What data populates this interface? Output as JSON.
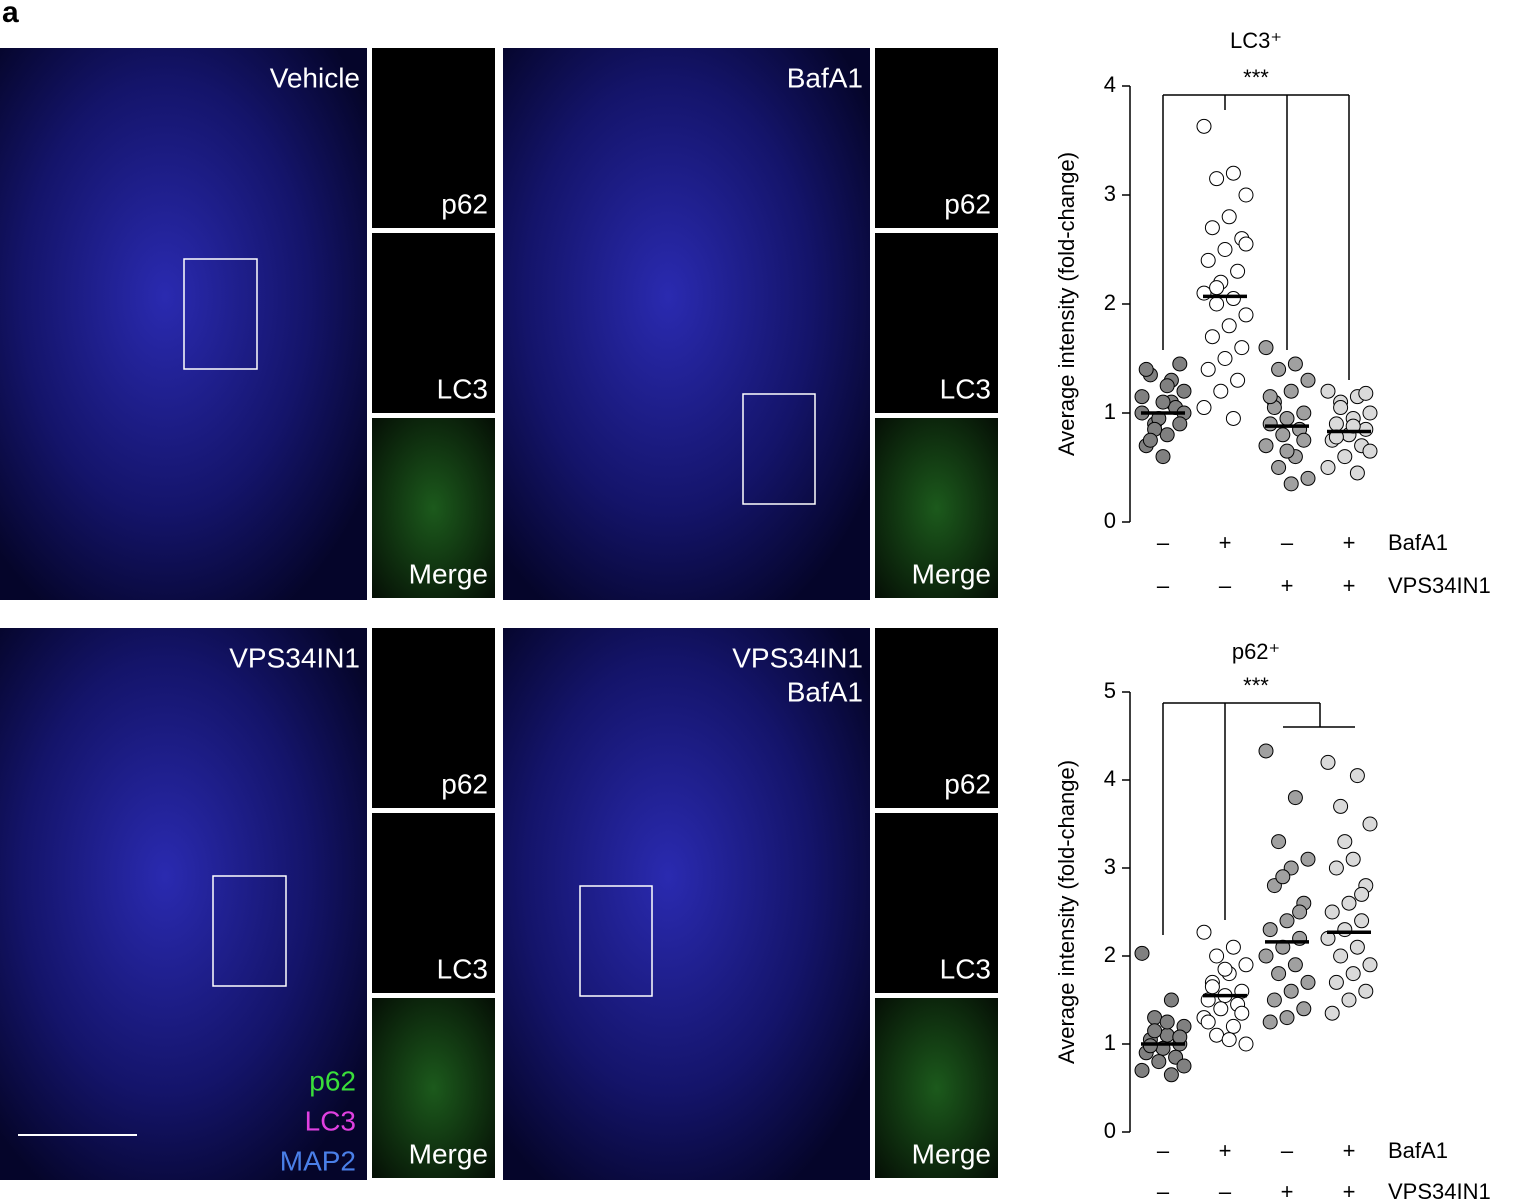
{
  "figure_label": "a",
  "images": [
    {
      "label": [
        "Vehicle"
      ],
      "insets": [
        "p62",
        "LC3",
        "Merge"
      ]
    },
    {
      "label": [
        "BafA1"
      ],
      "insets": [
        "p62",
        "LC3",
        "Merge"
      ]
    },
    {
      "label": [
        "VPS34IN1"
      ],
      "insets": [
        "p62",
        "LC3",
        "Merge"
      ],
      "legend": [
        {
          "text": "p62",
          "color": "#3ade3a"
        },
        {
          "text": "LC3",
          "color": "#e040e0"
        },
        {
          "text": "MAP2",
          "color": "#4a7fe8"
        }
      ]
    },
    {
      "label": [
        "VPS34IN1",
        "BafA1"
      ],
      "insets": [
        "p62",
        "LC3",
        "Merge"
      ]
    }
  ],
  "chart_data": [
    {
      "type": "strip",
      "title": "LC3⁺",
      "y_label": "Average intensity (fold-change)",
      "ylim": [
        0,
        4
      ],
      "yticks": [
        0,
        1,
        2,
        3,
        4
      ],
      "significance": "***",
      "conditions": [
        {
          "name": "BafA1",
          "signs": [
            "–",
            "+",
            "–",
            "+"
          ]
        },
        {
          "name": "VPS34IN1",
          "signs": [
            "–",
            "–",
            "+",
            "+"
          ]
        }
      ],
      "series": [
        {
          "color": "#808080",
          "mean": 1.0,
          "values": [
            1.0,
            1.1,
            0.9,
            1.2,
            0.8,
            1.35,
            1.45,
            0.6,
            0.7,
            1.05,
            0.95,
            1.15,
            1.3,
            0.85,
            1.0,
            1.25,
            0.75,
            0.9,
            1.1,
            1.4
          ]
        },
        {
          "color": "#ffffff",
          "mean": 2.07,
          "values": [
            3.63,
            3.2,
            3.15,
            3.0,
            2.8,
            2.7,
            2.6,
            2.5,
            2.4,
            2.3,
            2.2,
            2.1,
            2.05,
            2.0,
            1.9,
            1.8,
            1.7,
            1.6,
            1.5,
            1.4,
            1.3,
            1.2,
            1.05,
            0.95,
            2.15,
            2.55
          ]
        },
        {
          "color": "#a0a0a0",
          "mean": 0.88,
          "values": [
            1.6,
            1.45,
            1.4,
            1.3,
            1.2,
            1.1,
            1.0,
            0.95,
            0.9,
            0.85,
            0.8,
            0.7,
            0.6,
            0.5,
            0.4,
            0.35,
            1.05,
            0.75,
            0.65,
            1.15
          ]
        },
        {
          "color": "#dadada",
          "mean": 0.83,
          "values": [
            1.2,
            1.15,
            1.1,
            1.0,
            0.95,
            0.9,
            0.85,
            0.8,
            0.75,
            0.7,
            0.6,
            0.5,
            0.45,
            1.05,
            0.65,
            0.88,
            0.78,
            1.18
          ]
        }
      ]
    },
    {
      "type": "strip",
      "title": "p62⁺",
      "y_label": "Average intensity (fold-change)",
      "ylim": [
        0,
        5
      ],
      "yticks": [
        0,
        1,
        2,
        3,
        4,
        5
      ],
      "significance": "***",
      "conditions": [
        {
          "name": "BafA1",
          "signs": [
            "–",
            "+",
            "–",
            "+"
          ]
        },
        {
          "name": "VPS34IN1",
          "signs": [
            "–",
            "–",
            "+",
            "+"
          ]
        }
      ],
      "series": [
        {
          "color": "#808080",
          "mean": 1.0,
          "values": [
            2.03,
            1.5,
            1.3,
            1.2,
            1.1,
            1.05,
            1.0,
            0.95,
            0.9,
            0.85,
            0.8,
            0.7,
            0.65,
            1.15,
            0.75,
            1.25,
            0.98,
            1.08
          ]
        },
        {
          "color": "#ffffff",
          "mean": 1.55,
          "values": [
            2.27,
            2.1,
            2.0,
            1.9,
            1.8,
            1.7,
            1.6,
            1.55,
            1.5,
            1.45,
            1.4,
            1.3,
            1.2,
            1.1,
            1.0,
            1.05,
            1.65,
            1.35,
            1.85,
            1.25
          ]
        },
        {
          "color": "#a0a0a0",
          "mean": 2.16,
          "values": [
            4.33,
            3.8,
            3.3,
            3.1,
            3.0,
            2.8,
            2.6,
            2.4,
            2.3,
            2.2,
            2.1,
            2.0,
            1.9,
            1.8,
            1.7,
            1.6,
            1.5,
            1.4,
            1.3,
            1.25,
            2.5,
            2.9
          ]
        },
        {
          "color": "#dadada",
          "mean": 2.27,
          "values": [
            4.2,
            4.05,
            3.7,
            3.5,
            3.1,
            3.0,
            2.8,
            2.6,
            2.5,
            2.4,
            2.3,
            2.2,
            2.1,
            2.0,
            1.9,
            1.8,
            1.7,
            1.6,
            1.5,
            1.35,
            2.7,
            3.3
          ]
        }
      ]
    }
  ]
}
